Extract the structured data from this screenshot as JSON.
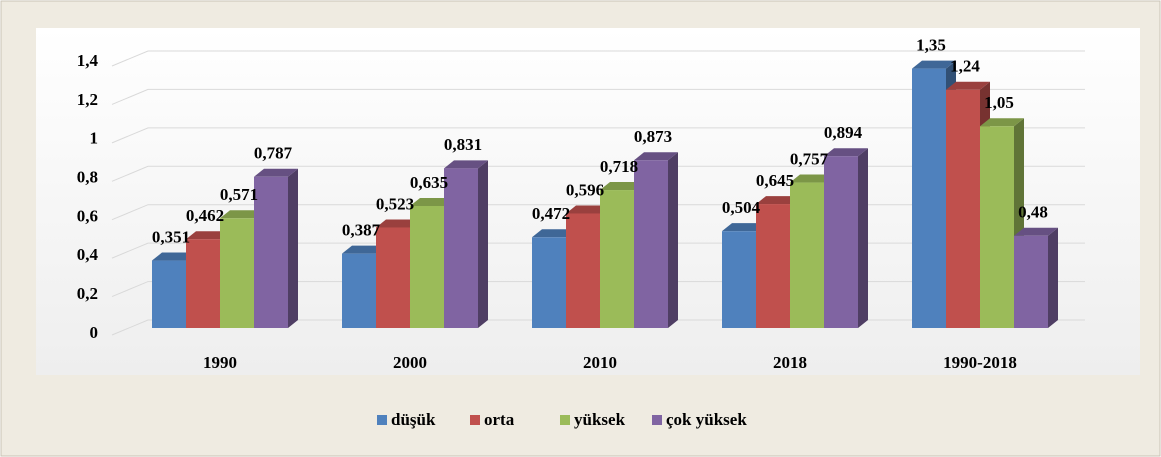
{
  "chart_data": {
    "type": "bar3d",
    "categories": [
      "1990",
      "2000",
      "2010",
      "2018",
      "1990-2018"
    ],
    "series": [
      {
        "name": "düşük",
        "color": "#4f81bd",
        "values": [
          0.351,
          0.387,
          0.472,
          0.504,
          1.35
        ],
        "value_labels": [
          "0,351",
          "0,387",
          "0,472",
          "0,504",
          "1,35"
        ]
      },
      {
        "name": "orta",
        "color": "#c0504d",
        "values": [
          0.462,
          0.523,
          0.596,
          0.645,
          1.24
        ],
        "value_labels": [
          "0,462",
          "0,523",
          "0,596",
          "0,645",
          "1,24"
        ]
      },
      {
        "name": "yüksek",
        "color": "#9bbb59",
        "values": [
          0.571,
          0.635,
          0.718,
          0.757,
          1.05
        ],
        "value_labels": [
          "0,571",
          "0,635",
          "0,718",
          "0,757",
          "1,05"
        ]
      },
      {
        "name": "çok yüksek",
        "color": "#8064a2",
        "values": [
          0.787,
          0.831,
          0.873,
          0.894,
          0.48
        ],
        "value_labels": [
          "0,787",
          "0,831",
          "0,873",
          "0,894",
          "0,48"
        ]
      }
    ],
    "ylim": [
      0,
      1.4
    ],
    "yticks": [
      0,
      {
        "value": 0.2,
        "label": "0,2"
      },
      {
        "value": 0.4,
        "label": "0,4"
      },
      {
        "value": 0.6,
        "label": "0,6"
      },
      {
        "value": 0.8,
        "label": "0,8"
      },
      1,
      {
        "value": 1.2,
        "label": "1,2"
      },
      {
        "value": 1.4,
        "label": "1,4"
      }
    ],
    "grid": true,
    "legend": "bottom"
  }
}
